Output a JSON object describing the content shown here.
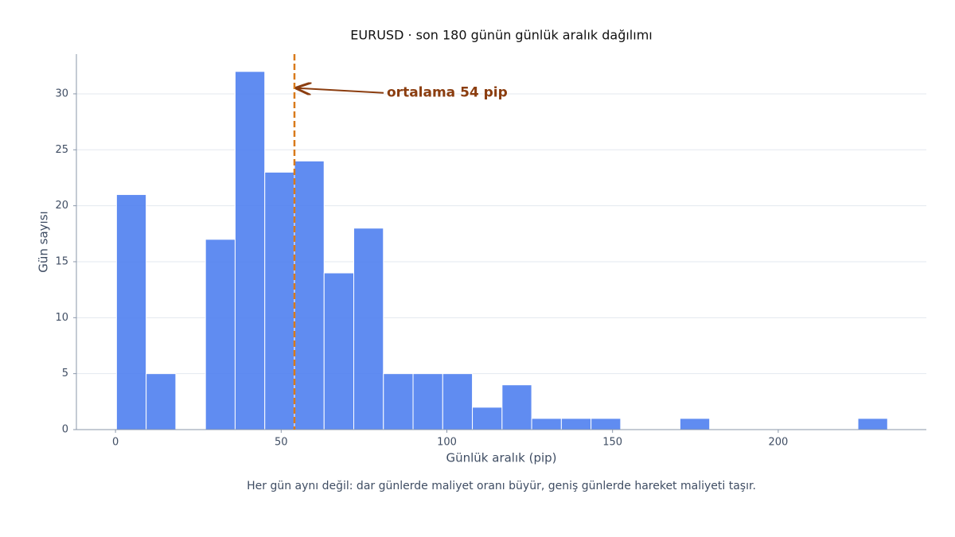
{
  "chart_data": {
    "type": "histogram",
    "title": "EURUSD · son 180 günün günlük aralık dağılımı",
    "x_label": "Günlük aralık (pip)",
    "y_label": "Gün sayısı",
    "caption": "Her gün aynı değil: dar günlerde maliyet oranı büyür, geniş günlerde hareket maliyeti taşır.",
    "bins": [
      0.3,
      9.25,
      18.2,
      27.15,
      36.1,
      45.05,
      54,
      62.95,
      71.9,
      80.85,
      89.8,
      98.75,
      107.7,
      116.65,
      125.6,
      134.55,
      143.5,
      152.45,
      161.4,
      170.35,
      179.3,
      188.25,
      197.2,
      206.15,
      215.1,
      224.05,
      233
    ],
    "counts": [
      21,
      5,
      0,
      17,
      32,
      23,
      24,
      14,
      18,
      5,
      5,
      5,
      2,
      4,
      1,
      1,
      1,
      0,
      0,
      1,
      0,
      0,
      0,
      0,
      0,
      1
    ],
    "color": "#4f7ff0",
    "mean": 54,
    "mean_color": "#d97a1a",
    "annotation": {
      "text": "ortalama 54 pip",
      "color": "#8b3d0f",
      "y": 30.3
    },
    "xlim": [
      -11.8,
      244.7
    ],
    "xticks": [
      0,
      50,
      100,
      150,
      200
    ],
    "ylim": [
      0,
      33.55
    ],
    "yticks": [
      0,
      5,
      10,
      15,
      20,
      25,
      30
    ],
    "grid": true
  }
}
